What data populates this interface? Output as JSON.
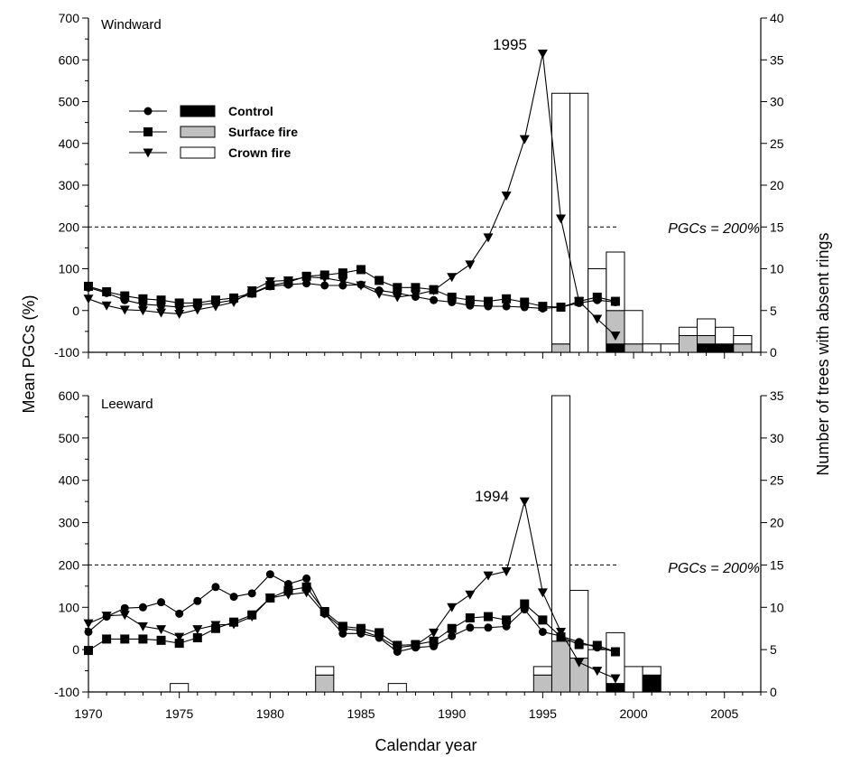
{
  "chart_data": {
    "type": "line+bar",
    "xlabel": "Calendar year",
    "ylabel_left": "Mean PGCs (%)",
    "ylabel_right": "Number of trees with absent rings",
    "xlim": [
      1970,
      2007
    ],
    "x_ticks": [
      "1970",
      "1975",
      "1980",
      "1985",
      "1990",
      "1995",
      "2000",
      "2005"
    ],
    "legend": {
      "placement": "upper-left of top panel",
      "entries": [
        {
          "label": "Control",
          "marker": "circle",
          "fill": "#000000"
        },
        {
          "label": "Surface fire",
          "marker": "square",
          "fill": "#c0c0c0"
        },
        {
          "label": "Crown fire",
          "marker": "triangle-down",
          "fill": "#ffffff"
        }
      ]
    },
    "panels": [
      {
        "title": "Windward",
        "ylim_left": [
          -100,
          700
        ],
        "ylim_right": [
          0,
          40
        ],
        "left_ticks": [
          "-100",
          "0",
          "100",
          "200",
          "300",
          "400",
          "500",
          "600",
          "700"
        ],
        "right_ticks": [
          "0",
          "5",
          "10",
          "15",
          "20",
          "25",
          "30",
          "35",
          "40"
        ],
        "reference_line": {
          "y": 200,
          "label": "PGCs = 200%"
        },
        "peak_annotation": {
          "x": 1995,
          "y": 615,
          "label": "1995"
        },
        "series": [
          {
            "name": "Control",
            "x": [
              1970,
              1971,
              1972,
              1973,
              1974,
              1975,
              1976,
              1977,
              1978,
              1979,
              1980,
              1981,
              1982,
              1983,
              1984,
              1985,
              1986,
              1987,
              1988,
              1989,
              1990,
              1991,
              1992,
              1993,
              1994,
              1995,
              1996,
              1997,
              1998,
              1999
            ],
            "values": [
              55,
              42,
              25,
              15,
              12,
              8,
              13,
              18,
              25,
              40,
              58,
              62,
              65,
              60,
              60,
              62,
              48,
              42,
              33,
              25,
              20,
              12,
              10,
              10,
              8,
              5,
              8,
              18,
              25,
              20
            ]
          },
          {
            "name": "Surface fire",
            "x": [
              1970,
              1971,
              1972,
              1973,
              1974,
              1975,
              1976,
              1977,
              1978,
              1979,
              1980,
              1981,
              1982,
              1983,
              1984,
              1985,
              1986,
              1987,
              1988,
              1989,
              1990,
              1991,
              1992,
              1993,
              1994,
              1995,
              1996,
              1997,
              1998,
              1999
            ],
            "values": [
              58,
              45,
              35,
              28,
              25,
              18,
              18,
              25,
              30,
              42,
              60,
              68,
              82,
              85,
              90,
              98,
              72,
              55,
              55,
              50,
              32,
              25,
              22,
              28,
              20,
              10,
              8,
              22,
              32,
              22
            ]
          },
          {
            "name": "Crown fire",
            "x": [
              1970,
              1971,
              1972,
              1973,
              1974,
              1975,
              1976,
              1977,
              1978,
              1979,
              1980,
              1981,
              1982,
              1983,
              1984,
              1985,
              1986,
              1987,
              1988,
              1989,
              1990,
              1991,
              1992,
              1993,
              1994,
              1995,
              1996,
              1997,
              1998,
              1999
            ],
            "values": [
              28,
              12,
              2,
              0,
              -5,
              -8,
              2,
              10,
              20,
              48,
              70,
              72,
              80,
              78,
              70,
              60,
              40,
              32,
              38,
              48,
              80,
              110,
              175,
              275,
              410,
              615,
              220,
              22,
              -20,
              -60
            ]
          }
        ],
        "bars": {
          "x": [
            1996,
            1997,
            1998,
            1999,
            2000,
            2001,
            2002,
            2003,
            2004,
            2005,
            2006
          ],
          "Control": [
            0,
            0,
            0,
            1,
            0,
            0,
            0,
            0,
            1,
            1,
            0
          ],
          "Surface fire": [
            1,
            0,
            0,
            4,
            1,
            0,
            0,
            2,
            1,
            0,
            1
          ],
          "Crown fire": [
            30,
            31,
            10,
            7,
            4,
            1,
            1,
            1,
            2,
            2,
            1
          ]
        }
      },
      {
        "title": "Leeward",
        "ylim_left": [
          -100,
          600
        ],
        "ylim_right": [
          0,
          35
        ],
        "left_ticks": [
          "-100",
          "0",
          "100",
          "200",
          "300",
          "400",
          "500",
          "600"
        ],
        "right_ticks": [
          "0",
          "5",
          "10",
          "15",
          "20",
          "25",
          "30",
          "35"
        ],
        "reference_line": {
          "y": 200,
          "label": "PGCs = 200%"
        },
        "peak_annotation": {
          "x": 1994,
          "y": 350,
          "label": "1994"
        },
        "series": [
          {
            "name": "Control",
            "x": [
              1970,
              1971,
              1972,
              1973,
              1974,
              1975,
              1976,
              1977,
              1978,
              1979,
              1980,
              1981,
              1982,
              1983,
              1984,
              1985,
              1986,
              1987,
              1988,
              1989,
              1990,
              1991,
              1992,
              1993,
              1994,
              1995,
              1996,
              1997,
              1998,
              1999
            ],
            "values": [
              42,
              78,
              98,
              100,
              112,
              85,
              115,
              148,
              125,
              133,
              178,
              155,
              168,
              85,
              38,
              38,
              28,
              -5,
              5,
              8,
              32,
              52,
              52,
              55,
              95,
              42,
              32,
              18,
              5,
              -5
            ]
          },
          {
            "name": "Surface fire",
            "x": [
              1970,
              1971,
              1972,
              1973,
              1974,
              1975,
              1976,
              1977,
              1978,
              1979,
              1980,
              1981,
              1982,
              1983,
              1984,
              1985,
              1986,
              1987,
              1988,
              1989,
              1990,
              1991,
              1992,
              1993,
              1994,
              1995,
              1996,
              1997,
              1998,
              1999
            ],
            "values": [
              -2,
              25,
              25,
              25,
              22,
              15,
              28,
              50,
              65,
              82,
              122,
              140,
              148,
              90,
              55,
              50,
              40,
              10,
              12,
              20,
              50,
              75,
              78,
              70,
              108,
              70,
              30,
              12,
              10,
              -5
            ]
          },
          {
            "name": "Crown fire",
            "x": [
              1970,
              1971,
              1972,
              1973,
              1974,
              1975,
              1976,
              1977,
              1978,
              1979,
              1980,
              1981,
              1982,
              1983,
              1984,
              1985,
              1986,
              1987,
              1988,
              1989,
              1990,
              1991,
              1992,
              1993,
              1994,
              1995,
              1996,
              1997,
              1998,
              1999
            ],
            "values": [
              62,
              80,
              82,
              55,
              48,
              30,
              48,
              58,
              60,
              78,
              122,
              130,
              135,
              85,
              50,
              45,
              30,
              5,
              10,
              40,
              100,
              130,
              175,
              185,
              350,
              135,
              42,
              -30,
              -50,
              -68
            ]
          }
        ],
        "bars": {
          "x": [
            1975,
            1983,
            1987,
            1995,
            1996,
            1997,
            1998,
            1999,
            2000,
            2001
          ],
          "Control": [
            0,
            0,
            0,
            0,
            0,
            0,
            0,
            1,
            0,
            2
          ],
          "Surface fire": [
            0,
            2,
            0,
            2,
            6,
            4,
            0,
            0,
            0,
            0
          ],
          "Crown fire": [
            1,
            1,
            1,
            1,
            29,
            8,
            5,
            6,
            3,
            1
          ]
        }
      }
    ]
  }
}
